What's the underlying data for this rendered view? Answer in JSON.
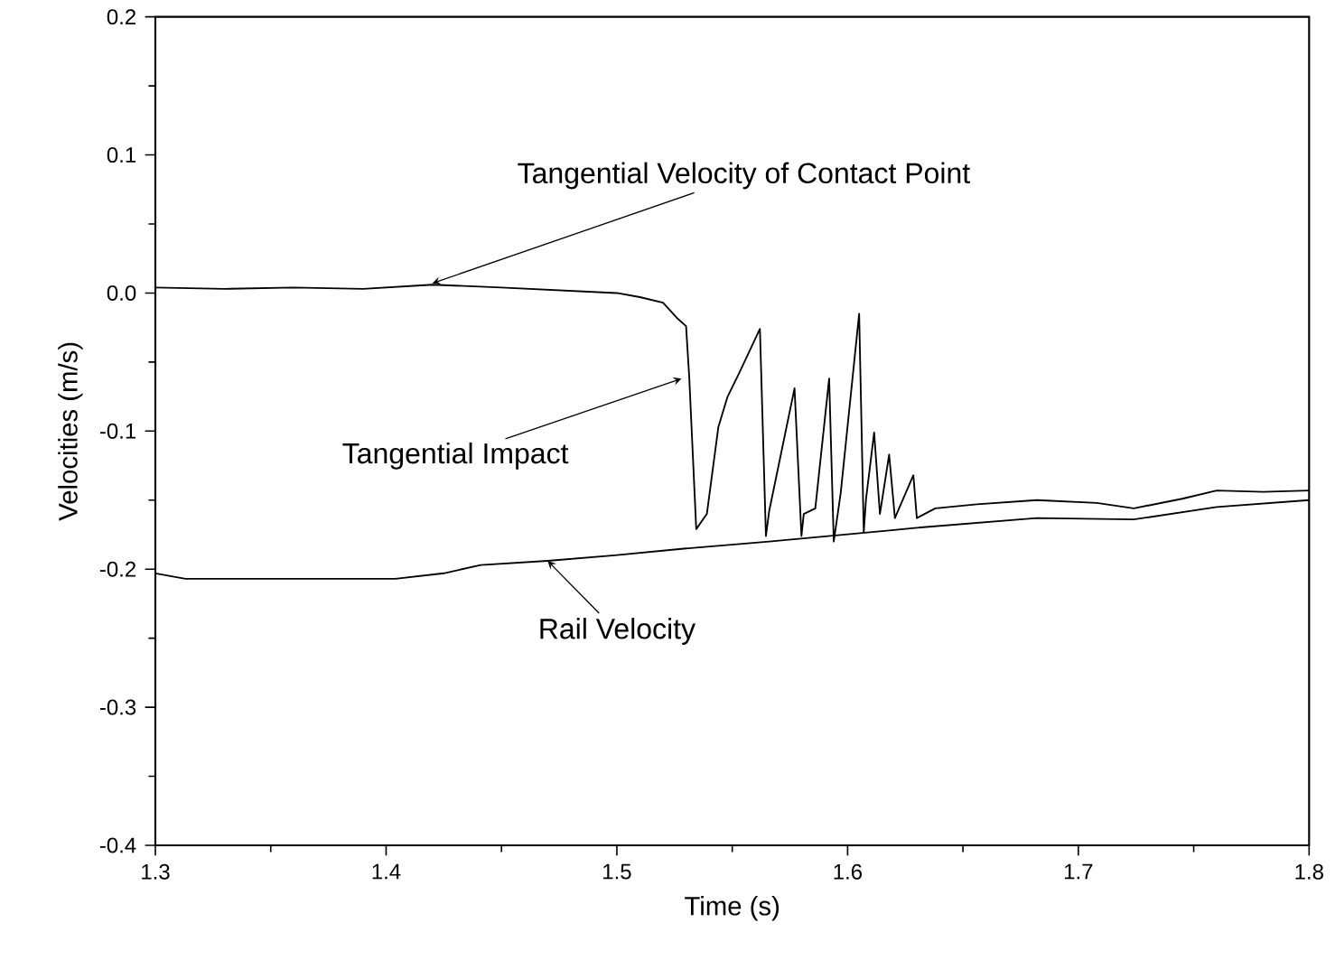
{
  "chart_data": {
    "type": "line",
    "xlabel": "Time (s)",
    "ylabel": "Velocities (m/s)",
    "xlim": [
      1.3,
      1.8
    ],
    "ylim": [
      -0.4,
      0.2
    ],
    "xticks": [
      1.3,
      1.4,
      1.5,
      1.6,
      1.7,
      1.8
    ],
    "yticks": [
      -0.4,
      -0.3,
      -0.2,
      -0.1,
      {
        "value": 0,
        "label": "0.0"
      },
      0.1,
      0.2
    ],
    "grid": false,
    "marker": "none",
    "line_style": "solid",
    "series": [
      {
        "color": "#000000",
        "x": [
          1.3,
          1.33,
          1.36,
          1.39,
          1.42,
          1.45,
          1.5,
          1.51,
          1.52,
          1.526,
          1.53,
          1.5314,
          1.5344,
          1.539,
          1.544,
          1.548,
          1.553,
          1.562,
          1.5646,
          1.566,
          1.577,
          1.58,
          1.581,
          1.586,
          1.592,
          1.594,
          1.597,
          1.605,
          1.607,
          1.608,
          1.6115,
          1.614,
          1.618,
          1.6205,
          1.6285,
          1.63,
          1.638,
          1.656,
          1.682,
          1.708,
          1.724,
          1.745,
          1.76,
          1.78,
          1.8
        ],
        "values": [
          0.004,
          0.003,
          0.004,
          0.003,
          0.006,
          0.004,
          0.0,
          -0.003,
          -0.007,
          -0.018,
          -0.024,
          -0.062,
          -0.171,
          -0.16,
          -0.097,
          -0.075,
          -0.058,
          -0.026,
          -0.176,
          -0.158,
          -0.069,
          -0.176,
          -0.16,
          -0.156,
          -0.062,
          -0.18,
          -0.145,
          -0.015,
          -0.173,
          -0.149,
          -0.101,
          -0.16,
          -0.117,
          -0.163,
          -0.132,
          -0.163,
          -0.156,
          -0.153,
          -0.15,
          -0.152,
          -0.156,
          -0.149,
          -0.143,
          -0.144,
          -0.143
        ]
      },
      {
        "color": "#000000",
        "x": [
          1.3,
          1.313,
          1.35,
          1.404,
          1.425,
          1.441,
          1.47,
          1.499,
          1.53,
          1.566,
          1.618,
          1.63,
          1.682,
          1.724,
          1.76,
          1.8
        ],
        "values": [
          -0.203,
          -0.207,
          -0.207,
          -0.207,
          -0.203,
          -0.197,
          -0.194,
          -0.19,
          -0.185,
          -0.18,
          -0.172,
          -0.17,
          -0.163,
          -0.164,
          -0.155,
          -0.15
        ]
      }
    ],
    "annotations": [
      {
        "text": "Tangential Velocity of Contact Point",
        "x": 1.42,
        "y": 0.007
      },
      {
        "text": "Tangential Impact",
        "x": 1.528,
        "y": -0.062
      },
      {
        "text": "Rail Velocity",
        "x": 1.47,
        "y": -0.194
      }
    ]
  }
}
